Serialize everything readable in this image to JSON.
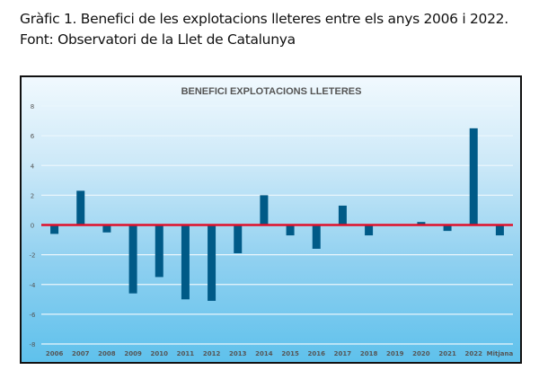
{
  "caption": {
    "line1": "Gràfic 1. Benefici de les explotacions lleteres entre els anys 2006 i 2022.",
    "line2": "Font: Observatori de la Llet de Catalunya"
  },
  "chart_data": {
    "type": "bar",
    "title": "BENEFICI EXPLOTACIONS LLETERES",
    "categories": [
      "2006",
      "2007",
      "2008",
      "2009",
      "2010",
      "2011",
      "2012",
      "2013",
      "2014",
      "2015",
      "2016",
      "2017",
      "2018",
      "2019",
      "2020",
      "2021",
      "2022",
      "Mitjana"
    ],
    "values": [
      -0.6,
      2.3,
      -0.5,
      -4.6,
      -3.5,
      -5.0,
      -5.1,
      -1.9,
      2.0,
      -0.7,
      -1.6,
      1.3,
      -0.7,
      0,
      0.2,
      -0.4,
      6.5,
      -0.7
    ],
    "ylim": [
      -8,
      8
    ],
    "yticks": [
      8,
      6,
      4,
      2,
      0,
      -2,
      -4,
      -6,
      -8
    ],
    "grid": true,
    "xlabel": "",
    "ylabel": "",
    "colors": {
      "bar": "#005a87",
      "zero_line": "#e0102a",
      "gridline": "#eaf6fc",
      "text": "#555555"
    }
  }
}
